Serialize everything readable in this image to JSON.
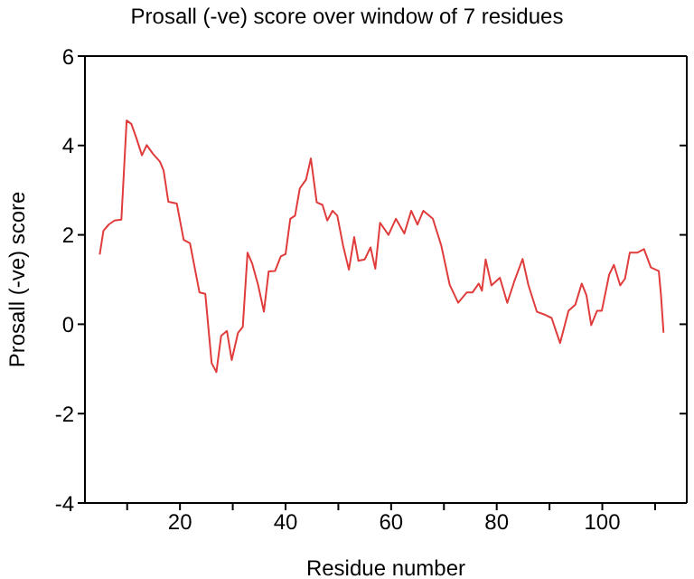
{
  "chart_data": {
    "type": "line",
    "title": "Prosall (-ve) score over window of 7 residues",
    "xlabel": "Residue number",
    "ylabel": "Prosall (-ve) score",
    "series": [
      {
        "color": "#e03c3c",
        "x": [
          4.8,
          5.5,
          6.5,
          7.6,
          8.9,
          9.9,
          10.8,
          11.7,
          12.8,
          13.7,
          14.9,
          16.2,
          16.9,
          17.8,
          19.4,
          20.7,
          21.9,
          23.7,
          24.8,
          26.0,
          26.9,
          27.8,
          28.9,
          29.8,
          31.0,
          31.9,
          32.8,
          33.7,
          34.8,
          35.9,
          36.8,
          38.0,
          39.1,
          40.0,
          40.9,
          41.8,
          42.7,
          43.9,
          44.8,
          45.9,
          47.0,
          47.9,
          48.9,
          49.8,
          50.9,
          52.0,
          53.0,
          53.8,
          55.0,
          56.1,
          57.0,
          57.9,
          59.5,
          60.9,
          62.5,
          63.8,
          65.0,
          66.1,
          67.9,
          69.5,
          71.1,
          72.7,
          74.3,
          75.4,
          76.6,
          77.2,
          77.9,
          79.0,
          80.6,
          82.0,
          83.3,
          84.9,
          86.0,
          87.6,
          89.2,
          90.4,
          92.0,
          93.6,
          94.9,
          96.1,
          97.0,
          97.9,
          99.0,
          99.9,
          101.3,
          102.2,
          103.4,
          104.3,
          105.2,
          106.6,
          107.9,
          109.2,
          110.7,
          111.1,
          111.6
        ],
        "values": [
          1.56,
          2.09,
          2.23,
          2.32,
          2.34,
          4.56,
          4.48,
          4.18,
          3.78,
          4.01,
          3.81,
          3.64,
          3.44,
          2.74,
          2.7,
          1.89,
          1.81,
          0.71,
          0.68,
          -0.87,
          -1.07,
          -0.26,
          -0.15,
          -0.8,
          -0.19,
          -0.06,
          1.6,
          1.35,
          0.88,
          0.28,
          1.18,
          1.19,
          1.52,
          1.57,
          2.36,
          2.43,
          3.04,
          3.24,
          3.71,
          2.73,
          2.67,
          2.32,
          2.54,
          2.43,
          1.76,
          1.22,
          1.95,
          1.42,
          1.45,
          1.72,
          1.24,
          2.27,
          2.0,
          2.36,
          2.03,
          2.54,
          2.23,
          2.54,
          2.36,
          1.76,
          0.88,
          0.48,
          0.71,
          0.71,
          0.91,
          0.75,
          1.45,
          0.87,
          1.04,
          0.48,
          0.95,
          1.46,
          0.88,
          0.28,
          0.21,
          0.14,
          -0.42,
          0.3,
          0.44,
          0.91,
          0.65,
          -0.02,
          0.3,
          0.3,
          1.11,
          1.33,
          0.87,
          1.02,
          1.6,
          1.6,
          1.68,
          1.27,
          1.19,
          0.68,
          -0.19
        ]
      }
    ],
    "xlim": [
      2,
      116
    ],
    "xticks": [
      {
        "value": 10,
        "label": null
      },
      20,
      {
        "value": 30,
        "label": null
      },
      40,
      {
        "value": 50,
        "label": null
      },
      60,
      {
        "value": 70,
        "label": null
      },
      80,
      {
        "value": 90,
        "label": null
      },
      100,
      {
        "value": 110,
        "label": null
      }
    ],
    "ylim": [
      -4,
      6
    ],
    "yticks": [
      -4,
      -2,
      0,
      2,
      4,
      6
    ],
    "marker": "none",
    "line_style": "solid"
  }
}
